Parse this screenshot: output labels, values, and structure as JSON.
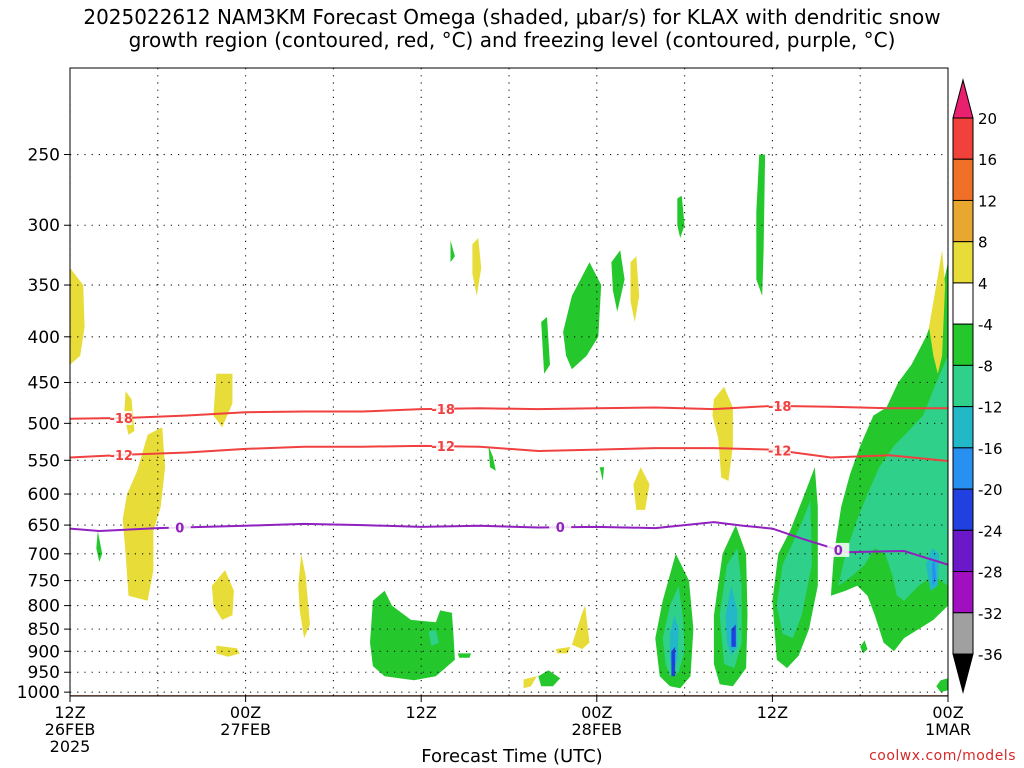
{
  "title_line1": "2025022612 NAM3KM Forecast Omega (shaded, μbar/s) for KLAX with dendritic snow",
  "title_line2": "growth region (contoured, red, °C) and freezing level (contoured, purple, °C)",
  "credit": "coolwx.com/models",
  "chart_data": {
    "type": "heatmap",
    "title": "2025022612 NAM3KM Forecast Omega (shaded, μbar/s) for KLAX with dendritic snow growth region (contoured, red, °C) and freezing level (contoured, purple, °C)",
    "xlabel": "Forecast Time (UTC)",
    "ylabel": "",
    "x_unit": "hours since 2025-02-26 12Z",
    "xlim": [
      0,
      60
    ],
    "ylim": [
      1010,
      200
    ],
    "y_scale": "log-pressure",
    "x_ticks": [
      {
        "x": 0,
        "label": "12Z",
        "label2": "26FEB",
        "label3": "2025"
      },
      {
        "x": 12,
        "label": "00Z",
        "label2": "27FEB",
        "label3": ""
      },
      {
        "x": 24,
        "label": "12Z",
        "label2": "",
        "label3": ""
      },
      {
        "x": 36,
        "label": "00Z",
        "label2": "28FEB",
        "label3": ""
      },
      {
        "x": 48,
        "label": "12Z",
        "label2": "",
        "label3": ""
      },
      {
        "x": 60,
        "label": "00Z",
        "label2": "1MAR",
        "label3": ""
      }
    ],
    "y_ticks": [
      250,
      300,
      350,
      400,
      450,
      500,
      550,
      600,
      650,
      700,
      750,
      800,
      850,
      900,
      950,
      1000
    ],
    "grid": true,
    "colorbar": {
      "levels": [
        20,
        16,
        12,
        8,
        4,
        -4,
        -8,
        -12,
        -16,
        -20,
        -24,
        -28,
        -32,
        -36
      ],
      "colors": [
        "#e8206e",
        "#f0413a",
        "#f07028",
        "#e8a830",
        "#e8dc38",
        "#ffffff",
        "#24c82c",
        "#2ed08a",
        "#22b8c8",
        "#2890f0",
        "#2040e0",
        "#6a18c8",
        "#a010c0",
        "#a0a0a0",
        "#000000"
      ]
    },
    "contours": [
      {
        "label": "-18",
        "color": "#f04040",
        "points": [
          [
            0,
            494
          ],
          [
            4,
            493
          ],
          [
            8,
            490
          ],
          [
            12,
            486
          ],
          [
            16,
            485
          ],
          [
            20,
            485
          ],
          [
            24,
            482
          ],
          [
            28,
            481
          ],
          [
            32,
            482
          ],
          [
            36,
            481
          ],
          [
            40,
            480
          ],
          [
            44,
            482
          ],
          [
            48,
            478
          ],
          [
            52,
            479
          ],
          [
            56,
            481
          ],
          [
            60,
            481
          ]
        ]
      },
      {
        "label": "-12",
        "color": "#f04040",
        "points": [
          [
            0,
            546
          ],
          [
            4,
            542
          ],
          [
            8,
            539
          ],
          [
            12,
            534
          ],
          [
            16,
            531
          ],
          [
            20,
            531
          ],
          [
            24,
            530
          ],
          [
            28,
            531
          ],
          [
            32,
            537
          ],
          [
            36,
            535
          ],
          [
            40,
            533
          ],
          [
            44,
            533
          ],
          [
            48,
            535
          ],
          [
            52,
            546
          ],
          [
            56,
            543
          ],
          [
            60,
            551
          ]
        ]
      },
      {
        "label": "0",
        "color": "#9020c0",
        "points": [
          [
            0,
            656
          ],
          [
            2,
            660
          ],
          [
            6,
            655
          ],
          [
            12,
            651
          ],
          [
            16,
            648
          ],
          [
            20,
            650
          ],
          [
            24,
            653
          ],
          [
            28,
            651
          ],
          [
            32,
            654
          ],
          [
            36,
            653
          ],
          [
            40,
            655
          ],
          [
            44,
            645
          ],
          [
            46,
            651
          ],
          [
            48,
            656
          ],
          [
            50,
            673
          ],
          [
            53,
            697
          ],
          [
            57,
            695
          ],
          [
            60,
            720
          ]
        ]
      }
    ],
    "omega_regions": [
      {
        "kind": "up",
        "value": -6,
        "region": "850-1000 hPa, hours 20.5-26.5"
      },
      {
        "kind": "up",
        "value": -14,
        "region": "850-990 hPa, hours 40-42.5"
      },
      {
        "kind": "up",
        "value": -14,
        "region": "650-980 hPa, hours 44-46"
      },
      {
        "kind": "up",
        "value": -14,
        "region": "600-900 hPa, hours 48-51"
      },
      {
        "kind": "up",
        "value": -10,
        "region": "400-880 hPa, hours 52-60"
      },
      {
        "kind": "down",
        "value": 5,
        "region": "510-780 hPa, hours 3.5-6.5"
      },
      {
        "kind": "down",
        "value": 5,
        "region": "440-520 hPa, hours 45-46.5"
      }
    ]
  }
}
